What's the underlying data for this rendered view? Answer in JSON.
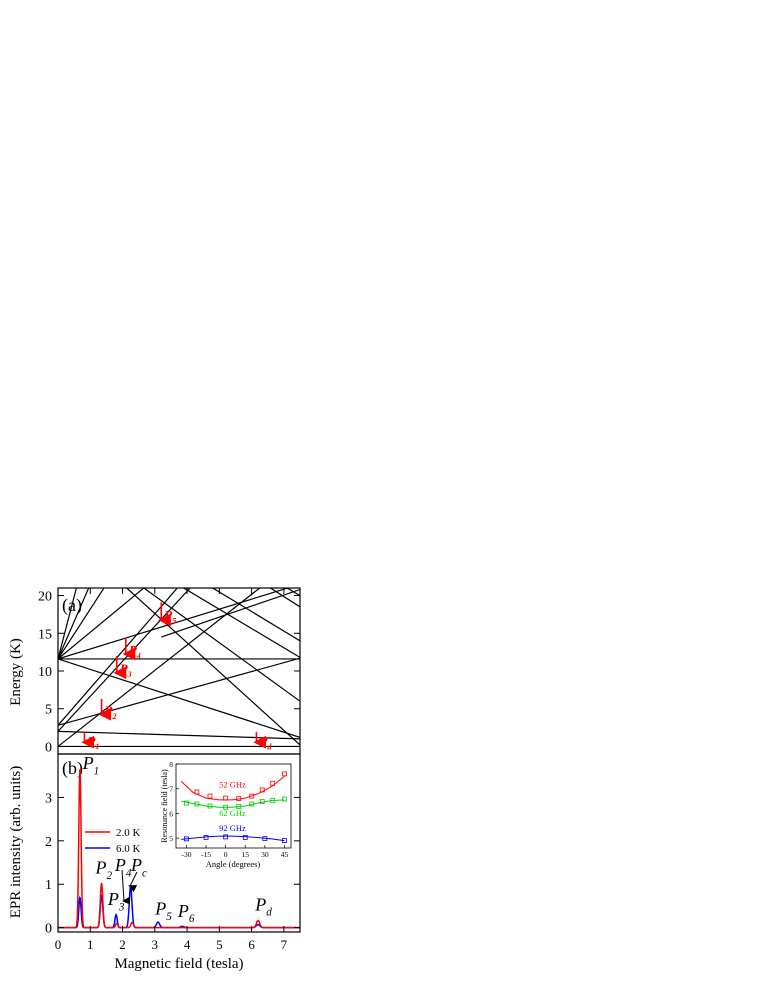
{
  "colors": {
    "axis": "#000000",
    "red": "#ff0000",
    "blue": "#0000ff",
    "green": "#00cc00"
  },
  "chart_data": [
    {
      "panel": "(a)",
      "type": "line",
      "ylabel": "Energy (K)",
      "xlim": [
        0,
        7.5
      ],
      "ylim": [
        -1,
        21
      ],
      "yticks": [
        0,
        5,
        10,
        15,
        20
      ],
      "levels": [
        {
          "x": [
            0,
            7.5
          ],
          "y": [
            11.6,
            11.6
          ]
        },
        {
          "x": [
            0,
            7.5
          ],
          "y": [
            11.6,
            21.5
          ]
        },
        {
          "x": [
            0,
            7.5
          ],
          "y": [
            11.6,
            1.2
          ]
        },
        {
          "x": [
            0,
            2.8
          ],
          "y": [
            11.6,
            21.5
          ]
        },
        {
          "x": [
            0,
            1.5
          ],
          "y": [
            11.6,
            21.5
          ]
        },
        {
          "x": [
            0,
            1.0
          ],
          "y": [
            11.6,
            21.5
          ]
        },
        {
          "x": [
            0,
            0.6
          ],
          "y": [
            11.6,
            21.5
          ]
        },
        {
          "x": [
            0,
            7.5
          ],
          "y": [
            2.8,
            11.7
          ]
        },
        {
          "x": [
            0,
            3.8
          ],
          "y": [
            2.8,
            21.5
          ]
        },
        {
          "x": [
            0,
            7.5
          ],
          "y": [
            2.0,
            1.0
          ]
        },
        {
          "x": [
            0,
            4.2
          ],
          "y": [
            2.0,
            21.5
          ]
        },
        {
          "x": [
            0,
            6.4
          ],
          "y": [
            0.0,
            21.5
          ]
        },
        {
          "x": [
            0,
            7.5
          ],
          "y": [
            0.0,
            0.0
          ]
        },
        {
          "x": [
            2.0,
            7.5
          ],
          "y": [
            21.5,
            0.2
          ]
        },
        {
          "x": [
            2.5,
            7.5
          ],
          "y": [
            21.5,
            6.0
          ]
        },
        {
          "x": [
            3.7,
            7.5
          ],
          "y": [
            21.5,
            11.8
          ]
        },
        {
          "x": [
            4.6,
            7.5
          ],
          "y": [
            21.5,
            14.0
          ]
        },
        {
          "x": [
            3.2,
            7.5
          ],
          "y": [
            14.5,
            20.8
          ]
        },
        {
          "x": [
            6.4,
            7.5
          ],
          "y": [
            21.5,
            18.5
          ]
        },
        {
          "x": [
            6.9,
            7.5
          ],
          "y": [
            21.5,
            20.0
          ]
        }
      ],
      "arrows": [
        {
          "label": "P",
          "sub": "1",
          "x": 0.82,
          "y1": 2.0,
          "y2": -0.1
        },
        {
          "label": "P",
          "sub": "2",
          "x": 1.35,
          "y1": 6.3,
          "y2": 3.6
        },
        {
          "label": "P",
          "sub": "3",
          "x": 1.82,
          "y1": 12.0,
          "y2": 9.1
        },
        {
          "label": "P",
          "sub": "4",
          "x": 2.1,
          "y1": 14.4,
          "y2": 11.6
        },
        {
          "label": "P",
          "sub": "5",
          "x": 3.2,
          "y1": 19.1,
          "y2": 16.1
        },
        {
          "label": "P",
          "sub": "d",
          "x": 6.15,
          "y1": 1.9,
          "y2": -0.1
        }
      ]
    },
    {
      "panel": "(b)",
      "type": "line",
      "xlabel": "Magnetic field (tesla)",
      "ylabel": "EPR intensity (arb. units)",
      "xlim": [
        0,
        7.5
      ],
      "ylim": [
        -0.1,
        4.0
      ],
      "xticks": [
        0,
        1,
        2,
        3,
        4,
        5,
        6,
        7
      ],
      "yticks": [
        0,
        1,
        2,
        3
      ],
      "series": [
        {
          "name": "2.0 K",
          "color": "#ff0000",
          "peaks": [
            {
              "x": 0.68,
              "h": 3.68,
              "w": 0.05
            },
            {
              "x": 1.35,
              "h": 1.03,
              "w": 0.055
            },
            {
              "x": 1.82,
              "h": 0.1,
              "w": 0.05
            },
            {
              "x": 2.3,
              "h": 0.12,
              "w": 0.06
            },
            {
              "x": 6.2,
              "h": 0.17,
              "w": 0.07
            }
          ]
        },
        {
          "name": "6.0 K",
          "color": "#0000ff",
          "peaks": [
            {
              "x": 0.68,
              "h": 0.7,
              "w": 0.05
            },
            {
              "x": 1.35,
              "h": 0.75,
              "w": 0.055
            },
            {
              "x": 1.8,
              "h": 0.3,
              "w": 0.05
            },
            {
              "x": 2.25,
              "h": 0.95,
              "w": 0.06
            },
            {
              "x": 3.1,
              "h": 0.13,
              "w": 0.07
            },
            {
              "x": 3.85,
              "h": 0.03,
              "w": 0.08
            },
            {
              "x": 6.2,
              "h": 0.07,
              "w": 0.08
            }
          ]
        }
      ],
      "labels": [
        {
          "main": "P",
          "sub": "1",
          "x": 0.95,
          "y": 3.65
        },
        {
          "main": "P",
          "sub": "2",
          "x": 1.35,
          "y": 1.25
        },
        {
          "main": "P",
          "sub": "3",
          "x": 1.73,
          "y": 0.52
        },
        {
          "main": "P",
          "sub": "4",
          "x": 1.95,
          "y": 1.3
        },
        {
          "main": "P",
          "sub": "c",
          "x": 2.45,
          "y": 1.3
        },
        {
          "main": "P",
          "sub": "5",
          "x": 3.2,
          "y": 0.3
        },
        {
          "main": "P",
          "sub": "6",
          "x": 3.9,
          "y": 0.25
        },
        {
          "main": "P",
          "sub": "d",
          "x": 6.3,
          "y": 0.4
        }
      ]
    },
    {
      "panel": "inset",
      "type": "scatter",
      "xlabel": "Angle (degrees)",
      "ylabel": "Resonance field (tesla)",
      "xlim": [
        -38,
        50
      ],
      "ylim": [
        4.6,
        8.0
      ],
      "xticks": [
        -30,
        -15,
        0,
        15,
        30,
        45
      ],
      "yticks": [
        5,
        6,
        7,
        8
      ],
      "series": [
        {
          "name": "52 GHz",
          "color": "#ff0000",
          "x": [
            -22,
            -12,
            0,
            10,
            20,
            28,
            36,
            45
          ],
          "y": [
            6.87,
            6.7,
            6.62,
            6.6,
            6.7,
            6.95,
            7.22,
            7.6
          ],
          "fit_x": [
            -34,
            -25,
            -15,
            -5,
            5,
            15,
            25,
            35,
            45
          ],
          "fit_y": [
            7.3,
            6.85,
            6.62,
            6.55,
            6.55,
            6.62,
            6.8,
            7.08,
            7.5
          ]
        },
        {
          "name": "62 GHz",
          "color": "#00cc00",
          "x": [
            -30,
            -22,
            -12,
            0,
            10,
            20,
            28,
            36,
            45
          ],
          "y": [
            6.42,
            6.38,
            6.3,
            6.25,
            6.28,
            6.38,
            6.48,
            6.52,
            6.58
          ],
          "fit_x": [
            -34,
            -25,
            -15,
            -5,
            5,
            15,
            25,
            35,
            45
          ],
          "fit_y": [
            6.5,
            6.4,
            6.3,
            6.25,
            6.25,
            6.3,
            6.42,
            6.52,
            6.55
          ]
        },
        {
          "name": "92 GHz",
          "color": "#0000ff",
          "x": [
            -30,
            -15,
            0,
            15,
            30,
            45
          ],
          "y": [
            4.97,
            5.03,
            5.05,
            5.03,
            4.98,
            4.9
          ],
          "fit_x": [
            -34,
            -25,
            -15,
            -5,
            5,
            15,
            25,
            35,
            45
          ],
          "fit_y": [
            4.95,
            5.0,
            5.05,
            5.08,
            5.08,
            5.06,
            5.02,
            4.97,
            4.9
          ]
        }
      ]
    }
  ]
}
